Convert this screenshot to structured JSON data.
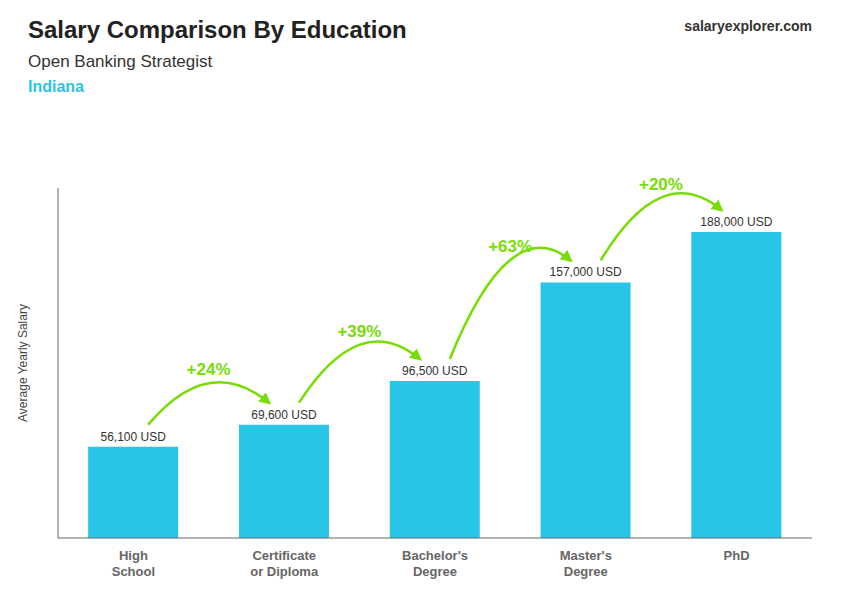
{
  "chart_data": {
    "type": "bar",
    "title": "Salary Comparison By Education",
    "subtitle": "Open Banking Strategist",
    "ylabel": "Average Yearly Salary",
    "categories": [
      "High\nSchool",
      "Certificate\nor Diploma",
      "Bachelor's\nDegree",
      "Master's\nDegree",
      "PhD"
    ],
    "values": [
      56100,
      69600,
      96500,
      157000,
      188000
    ],
    "value_labels": [
      "56,100 USD",
      "69,600 USD",
      "96,500 USD",
      "157,000 USD",
      "188,000 USD"
    ],
    "data_labels": true,
    "color": "#29c5e6",
    "ylim": [
      0,
      215000
    ],
    "yticks": [],
    "tick_labels": "x",
    "grid": false,
    "annotations": [
      {
        "text": "Indiana"
      },
      {
        "text": "salaryexplorer.com"
      },
      {
        "text": "+24%",
        "from": "High\nSchool",
        "to": "Certificate\nor Diploma",
        "color": "#77dd00"
      },
      {
        "text": "+39%",
        "from": "Certificate\nor Diploma",
        "to": "Bachelor's\nDegree",
        "color": "#77dd00"
      },
      {
        "text": "+63%",
        "from": "Bachelor's\nDegree",
        "to": "Master's\nDegree",
        "color": "#77dd00"
      },
      {
        "text": "+20%",
        "from": "Master's\nDegree",
        "to": "PhD",
        "color": "#77dd00"
      }
    ]
  }
}
